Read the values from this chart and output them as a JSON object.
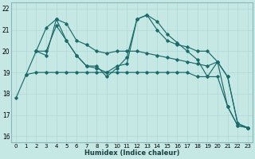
{
  "xlabel": "Humidex (Indice chaleur)",
  "xlim": [
    -0.5,
    23.5
  ],
  "ylim": [
    15.7,
    22.3
  ],
  "yticks": [
    16,
    17,
    18,
    19,
    20,
    21,
    22
  ],
  "xticks": [
    0,
    1,
    2,
    3,
    4,
    5,
    6,
    7,
    8,
    9,
    10,
    11,
    12,
    13,
    14,
    15,
    16,
    17,
    18,
    19,
    20,
    21,
    22,
    23
  ],
  "bg_color": "#c5e8e5",
  "grid_color_major": "#b0d8d5",
  "grid_color_minor": "#d8eeec",
  "line_color": "#1a6b6b",
  "line1": [
    null,
    18.9,
    19.0,
    19.0,
    19.0,
    19.0,
    19.0,
    19.0,
    19.0,
    19.0,
    19.0,
    19.0,
    19.0,
    19.0,
    19.0,
    19.0,
    19.0,
    19.0,
    18.8,
    18.8,
    18.8,
    17.4,
    16.5,
    16.4
  ],
  "line2": [
    17.8,
    18.9,
    20.0,
    21.1,
    21.5,
    21.3,
    20.5,
    20.3,
    20.0,
    19.9,
    20.0,
    20.0,
    20.0,
    19.9,
    19.8,
    19.7,
    19.6,
    19.5,
    19.4,
    19.3,
    19.5,
    18.8,
    16.6,
    16.4
  ],
  "line3": [
    null,
    null,
    20.0,
    20.0,
    21.2,
    20.5,
    19.8,
    19.3,
    19.3,
    18.8,
    19.2,
    19.7,
    21.5,
    21.7,
    21.0,
    20.5,
    20.3,
    20.2,
    20.0,
    20.0,
    19.5,
    18.8,
    16.6,
    16.4
  ],
  "line4": [
    null,
    null,
    20.0,
    19.8,
    21.5,
    20.5,
    19.8,
    19.3,
    19.2,
    19.0,
    19.3,
    19.4,
    21.5,
    21.7,
    21.4,
    20.8,
    20.4,
    20.0,
    19.6,
    18.8,
    19.5,
    17.4,
    16.5,
    16.4
  ]
}
